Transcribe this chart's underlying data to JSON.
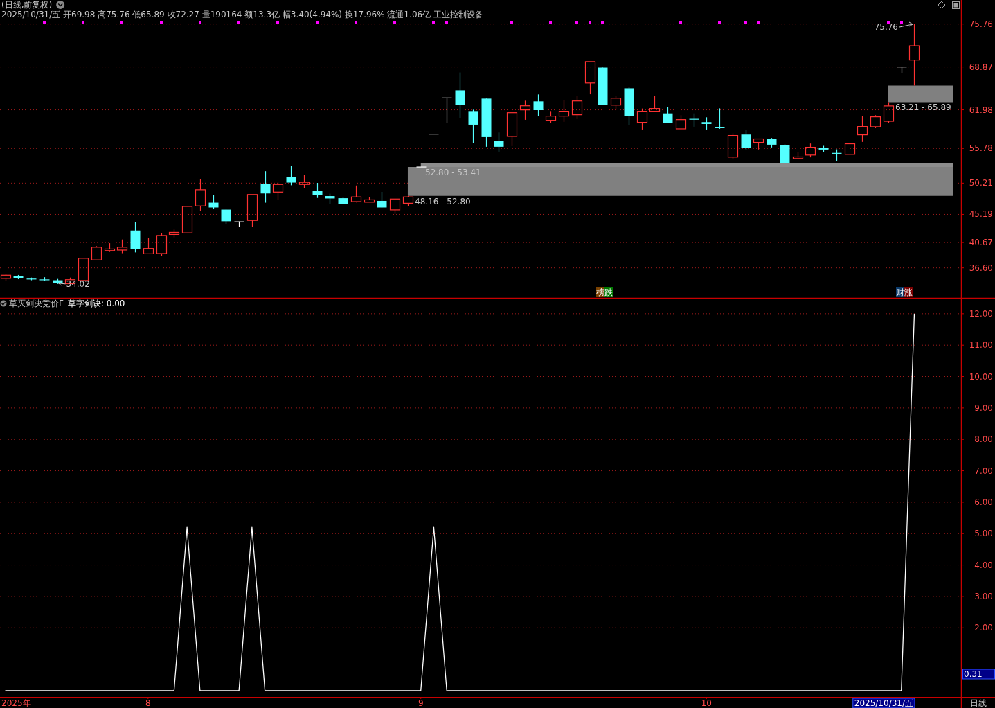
{
  "chart_data": [
    {
      "type": "candlestick",
      "title": "(日线,前复权)",
      "subtitle": "2025/10/31/五 开69.98 高75.76 低65.89 收72.27 量190164 额13.3亿 幅3.40(4.94%) 换17.96% 流通1.06亿 工业控制设备",
      "categories": [
        null,
        null,
        null,
        null,
        null,
        null,
        null,
        null,
        null,
        null,
        null,
        null,
        null,
        null,
        null,
        null,
        null,
        null,
        null,
        null,
        null,
        null,
        null,
        null,
        null,
        null,
        null,
        null,
        null,
        null,
        null,
        null,
        null,
        null,
        null,
        null,
        null,
        null,
        null,
        null,
        null,
        null,
        null,
        null,
        null,
        null,
        null,
        null,
        null,
        null,
        null,
        null,
        null,
        null,
        null,
        null,
        null,
        null,
        null,
        null,
        null,
        null,
        null,
        null,
        null,
        null,
        null,
        null,
        null,
        null,
        null,
        null,
        null,
        null
      ],
      "ohlc": [
        [
          34.91,
          35.68,
          34.49,
          35.42
        ],
        [
          35.34,
          35.46,
          34.78,
          34.91
        ],
        [
          34.83,
          35.04,
          34.61,
          34.78
        ],
        [
          34.7,
          35.1,
          34.49,
          34.66
        ],
        [
          34.61,
          34.82,
          34.02,
          34.14
        ],
        [
          34.06,
          35.04,
          34.06,
          34.7
        ],
        [
          34.57,
          38.14,
          34.57,
          38.14
        ],
        [
          37.88,
          40.09,
          37.88,
          39.92
        ],
        [
          39.37,
          40.56,
          39.16,
          39.63
        ],
        [
          39.46,
          41.16,
          38.95,
          39.92
        ],
        [
          42.6,
          43.92,
          39.08,
          39.63
        ],
        [
          38.86,
          41.37,
          38.86,
          39.71
        ],
        [
          38.9,
          42.13,
          38.56,
          41.8
        ],
        [
          41.97,
          42.77,
          41.5,
          42.3
        ],
        [
          42.22,
          46.47,
          42.22,
          46.47
        ],
        [
          46.55,
          50.81,
          45.75,
          49.15
        ],
        [
          47.07,
          48.25,
          46.05,
          46.3
        ],
        [
          45.96,
          45.96,
          43.54,
          44.09
        ],
        [
          44.0,
          44.05,
          43.24,
          44.0
        ],
        [
          44.22,
          48.38,
          43.2,
          48.38
        ],
        [
          50.04,
          52.12,
          47.07,
          48.55
        ],
        [
          48.77,
          50.3,
          47.53,
          50.0
        ],
        [
          51.15,
          53.02,
          49.87,
          50.3
        ],
        [
          50.0,
          51.49,
          49.44,
          50.34
        ],
        [
          49.02,
          50.25,
          47.83,
          48.3
        ],
        [
          48.13,
          48.51,
          46.81,
          47.75
        ],
        [
          47.79,
          48.04,
          46.81,
          46.85
        ],
        [
          47.24,
          49.83,
          47.11,
          48.0
        ],
        [
          47.15,
          47.96,
          47.15,
          47.53
        ],
        [
          47.36,
          48.81,
          46.3,
          46.3
        ],
        [
          45.92,
          47.66,
          45.28,
          47.66
        ],
        [
          46.98,
          48.16,
          46.47,
          48.0
        ],
        [
          52.8,
          52.8,
          52.8,
          52.8
        ],
        [
          58.08,
          58.08,
          58.08,
          58.08
        ],
        [
          63.89,
          63.89,
          59.9,
          63.89
        ],
        [
          65.11,
          67.99,
          60.6,
          62.82
        ],
        [
          61.78,
          62.0,
          56.61,
          59.6
        ],
        [
          63.78,
          63.78,
          56.05,
          57.6
        ],
        [
          56.98,
          58.34,
          55.27,
          56.05
        ],
        [
          57.71,
          61.52,
          56.16,
          61.52
        ],
        [
          61.97,
          63.45,
          60.38,
          62.63
        ],
        [
          63.34,
          64.45,
          60.93,
          61.93
        ],
        [
          60.3,
          61.78,
          59.93,
          60.97
        ],
        [
          60.97,
          63.56,
          60.05,
          61.75
        ],
        [
          61.19,
          64.22,
          60.49,
          63.41
        ],
        [
          66.29,
          69.73,
          64.48,
          69.73
        ],
        [
          68.77,
          68.77,
          62.82,
          62.82
        ],
        [
          62.74,
          64.22,
          62.0,
          63.85
        ],
        [
          65.44,
          65.74,
          59.49,
          60.93
        ],
        [
          59.97,
          62.19,
          58.82,
          61.75
        ],
        [
          61.75,
          64.19,
          61.75,
          62.19
        ],
        [
          61.41,
          62.45,
          59.82,
          59.82
        ],
        [
          58.93,
          61.12,
          58.93,
          60.41
        ],
        [
          60.52,
          61.41,
          59.27,
          60.41
        ],
        [
          60.01,
          60.78,
          58.82,
          59.71
        ],
        [
          59.23,
          62.22,
          58.93,
          59.04
        ],
        [
          54.39,
          58.2,
          54.05,
          57.86
        ],
        [
          58.01,
          58.79,
          55.57,
          55.83
        ],
        [
          56.75,
          57.31,
          55.61,
          57.31
        ],
        [
          57.34,
          57.46,
          55.94,
          56.38
        ],
        [
          56.35,
          56.46,
          53.41,
          53.46
        ],
        [
          54.16,
          55.24,
          54.05,
          54.42
        ],
        [
          54.72,
          56.57,
          54.35,
          55.97
        ],
        [
          55.9,
          56.2,
          55.24,
          55.6
        ],
        [
          55.01,
          55.64,
          53.79,
          54.98
        ],
        [
          54.83,
          56.68,
          54.83,
          56.53
        ],
        [
          57.97,
          61.0,
          56.83,
          59.3
        ],
        [
          59.27,
          61.12,
          59.04,
          60.86
        ],
        [
          60.15,
          63.21,
          59.82,
          62.61
        ],
        [
          68.87,
          68.87,
          67.81,
          68.87
        ],
        [
          69.98,
          75.76,
          65.89,
          72.27
        ],
        null,
        null,
        null
      ],
      "colors": [
        "#ff3232",
        "#54ffff",
        "#54ffff",
        "#54ffff",
        "#54ffff",
        "#ff3232",
        "#ff3232",
        "#ff3232",
        "#ff3232",
        "#ff3232",
        "#54ffff",
        "#ff3232",
        "#ff3232",
        "#ff3232",
        "#ff3232",
        "#ff3232",
        "#54ffff",
        "#54ffff",
        "#ffffff",
        "#ff3232",
        "#54ffff",
        "#ff3232",
        "#54ffff",
        "#ff3232",
        "#54ffff",
        "#54ffff",
        "#54ffff",
        "#ff3232",
        "#ff3232",
        "#54ffff",
        "#ff3232",
        "#ff3232",
        "#ffffff",
        "#ffffff",
        "#ffffff",
        "#54ffff",
        "#54ffff",
        "#54ffff",
        "#54ffff",
        "#ff3232",
        "#ff3232",
        "#54ffff",
        "#ff3232",
        "#ff3232",
        "#ff3232",
        "#ff3232",
        "#54ffff",
        "#ff3232",
        "#54ffff",
        "#ff3232",
        "#ff3232",
        "#54ffff",
        "#ff3232",
        "#54ffff",
        "#54ffff",
        "#54ffff",
        "#ff3232",
        "#54ffff",
        "#ff3232",
        "#54ffff",
        "#54ffff",
        "#ff3232",
        "#ff3232",
        "#54ffff",
        "#54ffff",
        "#ff3232",
        "#ff3232",
        "#ff3232",
        "#ff3232",
        "#ffffff",
        "#ff3232",
        null,
        null,
        null
      ],
      "series": [
        {
          "type": "line",
          "color": "#808080",
          "values": [
            null,
            null,
            null,
            null,
            null,
            null,
            null,
            null,
            null,
            null,
            null,
            null,
            null,
            null,
            null,
            null,
            null,
            null,
            null,
            null,
            null,
            null,
            null,
            null,
            null,
            null,
            null,
            null,
            null,
            null,
            null,
            null,
            null,
            null,
            null,
            null,
            null,
            null,
            null,
            null,
            null,
            null,
            null,
            null,
            null,
            null,
            null,
            null,
            null,
            null,
            null,
            null,
            null,
            null,
            null,
            null,
            null,
            null,
            null,
            null,
            null,
            null,
            null,
            null,
            null,
            null,
            null,
            null,
            null,
            null,
            null,
            null,
            null,
            null
          ],
          "upper": [
            null,
            null,
            null,
            null,
            null,
            null,
            null,
            null,
            null,
            null,
            null,
            null,
            null,
            null,
            null,
            null,
            null,
            null,
            null,
            null,
            null,
            null,
            null,
            null,
            null,
            null,
            null,
            null,
            null,
            null,
            null,
            52.8,
            52.8,
            52.8,
            52.8,
            52.8,
            52.8,
            52.8,
            52.8,
            52.8,
            52.8,
            52.8,
            52.8,
            52.8,
            52.8,
            52.8,
            52.8,
            52.8,
            52.8,
            52.8,
            52.8,
            52.8,
            52.8,
            52.8,
            52.8,
            52.8,
            52.8,
            52.8,
            52.8,
            52.8,
            52.8,
            52.8,
            52.8,
            52.8,
            52.8,
            52.8,
            52.8,
            52.8,
            52.8,
            52.8,
            52.8,
            52.8,
            52.8,
            52.8
          ],
          "lower": [
            null,
            null,
            null,
            null,
            null,
            null,
            null,
            null,
            null,
            null,
            null,
            null,
            null,
            null,
            null,
            null,
            null,
            null,
            null,
            null,
            null,
            null,
            null,
            null,
            null,
            null,
            null,
            null,
            null,
            null,
            null,
            48.16,
            48.16,
            48.16,
            48.16,
            48.16,
            48.16,
            48.16,
            48.16,
            48.16,
            48.16,
            48.16,
            48.16,
            48.16,
            48.16,
            48.16,
            48.16,
            48.16,
            48.16,
            48.16,
            48.16,
            48.16,
            48.16,
            48.16,
            48.16,
            48.16,
            48.16,
            48.16,
            48.16,
            48.16,
            48.16,
            48.16,
            48.16,
            48.16,
            48.16,
            48.16,
            48.16,
            48.16,
            48.16,
            48.16,
            48.16,
            48.16,
            48.16,
            48.16
          ]
        },
        {
          "type": "line",
          "color": "#8c8c8c",
          "values": [
            null,
            null,
            null,
            null,
            null,
            null,
            null,
            null,
            null,
            null,
            null,
            null,
            null,
            null,
            null,
            null,
            null,
            null,
            null,
            null,
            null,
            null,
            null,
            null,
            null,
            null,
            null,
            null,
            null,
            null,
            null,
            null,
            null,
            null,
            null,
            null,
            null,
            null,
            null,
            null,
            null,
            null,
            null,
            null,
            null,
            null,
            null,
            null,
            null,
            null,
            null,
            null,
            null,
            null,
            null,
            null,
            null,
            null,
            null,
            null,
            null,
            null,
            null,
            null,
            null,
            null,
            null,
            null,
            null,
            null,
            null,
            null,
            null,
            null
          ],
          "upper": [
            null,
            null,
            null,
            null,
            null,
            null,
            null,
            null,
            null,
            null,
            null,
            null,
            null,
            null,
            null,
            null,
            null,
            null,
            null,
            null,
            null,
            null,
            null,
            null,
            null,
            null,
            null,
            null,
            null,
            null,
            null,
            null,
            53.41,
            53.41,
            53.41,
            53.41,
            53.41,
            53.41,
            53.41,
            53.41,
            53.41,
            53.41,
            53.41,
            53.41,
            53.41,
            53.41,
            53.41,
            53.41,
            53.41,
            53.41,
            53.41,
            53.41,
            53.41,
            53.41,
            53.41,
            53.41,
            53.41,
            53.41,
            53.41,
            53.41,
            53.41,
            53.41,
            53.41,
            53.41,
            53.41,
            53.41,
            53.41,
            53.41,
            53.41,
            53.41,
            53.41,
            53.41,
            53.41,
            53.41
          ],
          "lower": [
            null,
            null,
            null,
            null,
            null,
            null,
            null,
            null,
            null,
            null,
            null,
            null,
            null,
            null,
            null,
            null,
            null,
            null,
            null,
            null,
            null,
            null,
            null,
            null,
            null,
            null,
            null,
            null,
            null,
            null,
            null,
            null,
            52.8,
            52.8,
            52.8,
            52.8,
            52.8,
            52.8,
            52.8,
            52.8,
            52.8,
            52.8,
            52.8,
            52.8,
            52.8,
            52.8,
            52.8,
            52.8,
            52.8,
            52.8,
            52.8,
            52.8,
            52.8,
            52.8,
            52.8,
            52.8,
            52.8,
            52.8,
            52.8,
            52.8,
            52.8,
            52.8,
            52.8,
            52.8,
            52.8,
            52.8,
            52.8,
            52.8,
            52.8,
            52.8,
            52.8,
            52.8,
            52.8,
            52.8
          ]
        },
        {
          "type": "line",
          "color": "#808080",
          "values": [
            null,
            null,
            null,
            null,
            null,
            null,
            null,
            null,
            null,
            null,
            null,
            null,
            null,
            null,
            null,
            null,
            null,
            null,
            null,
            null,
            null,
            null,
            null,
            null,
            null,
            null,
            null,
            null,
            null,
            null,
            null,
            null,
            null,
            null,
            null,
            null,
            null,
            null,
            null,
            null,
            null,
            null,
            null,
            null,
            null,
            null,
            null,
            null,
            null,
            null,
            null,
            null,
            null,
            null,
            null,
            null,
            null,
            null,
            null,
            null,
            null,
            null,
            null,
            null,
            null,
            null,
            null,
            null,
            null,
            null,
            null,
            null,
            null,
            null
          ],
          "upper": [
            null,
            null,
            null,
            null,
            null,
            null,
            null,
            null,
            null,
            null,
            null,
            null,
            null,
            null,
            null,
            null,
            null,
            null,
            null,
            null,
            null,
            null,
            null,
            null,
            null,
            null,
            null,
            null,
            null,
            null,
            null,
            null,
            null,
            null,
            null,
            null,
            null,
            null,
            null,
            null,
            null,
            null,
            null,
            null,
            null,
            null,
            null,
            null,
            null,
            null,
            null,
            null,
            null,
            null,
            null,
            null,
            null,
            null,
            null,
            null,
            null,
            null,
            null,
            null,
            null,
            null,
            null,
            null,
            65.89,
            65.89,
            65.89,
            65.89,
            65.89,
            65.89
          ],
          "lower": [
            null,
            null,
            null,
            null,
            null,
            null,
            null,
            null,
            null,
            null,
            null,
            null,
            null,
            null,
            null,
            null,
            null,
            null,
            null,
            null,
            null,
            null,
            null,
            null,
            null,
            null,
            null,
            null,
            null,
            null,
            null,
            null,
            null,
            null,
            null,
            null,
            null,
            null,
            null,
            null,
            null,
            null,
            null,
            null,
            null,
            null,
            null,
            null,
            null,
            null,
            null,
            null,
            null,
            null,
            null,
            null,
            null,
            null,
            null,
            null,
            null,
            null,
            null,
            null,
            null,
            null,
            null,
            null,
            63.21,
            63.21,
            63.21,
            63.21,
            63.21,
            63.21
          ]
        },
        {
          "type": "scatter",
          "color": "#ff00ff",
          "marker": "square",
          "values": [
            null,
            null,
            null,
            76,
            null,
            null,
            76,
            null,
            null,
            76,
            null,
            null,
            76,
            null,
            null,
            76,
            null,
            null,
            76,
            null,
            null,
            76,
            null,
            null,
            76,
            null,
            null,
            76,
            null,
            null,
            76,
            null,
            null,
            76,
            76,
            null,
            null,
            null,
            null,
            76,
            null,
            null,
            76,
            null,
            76,
            76,
            76,
            null,
            null,
            null,
            null,
            null,
            76,
            null,
            null,
            76,
            null,
            76,
            76,
            null,
            null,
            null,
            null,
            null,
            null,
            null,
            null,
            null,
            76,
            76,
            null,
            null,
            null,
            null
          ]
        }
      ],
      "ylim": [
        31.78,
        79.62
      ],
      "yticks": [
        {
          "value": 36.6,
          "label": "36.60"
        },
        40.67,
        45.19,
        50.21,
        55.78,
        61.98,
        68.87,
        75.76
      ],
      "grid": "y",
      "tick_labels": "y",
      "annotations": [
        {
          "text": "34.02",
          "y": 34.02
        },
        "75.76",
        "榜跌",
        "财涨",
        "48.16 - 52.80",
        "52.80 - 53.41",
        "63.21 - 65.89"
      ]
    },
    {
      "type": "line",
      "title": "草灭剑决竞价F",
      "categories": [
        null,
        null,
        null,
        null,
        null,
        null,
        null,
        null,
        null,
        null,
        null,
        "8",
        null,
        null,
        null,
        null,
        null,
        null,
        null,
        null,
        null,
        null,
        null,
        null,
        null,
        null,
        null,
        null,
        null,
        null,
        null,
        null,
        "9",
        null,
        null,
        null,
        null,
        null,
        null,
        null,
        null,
        null,
        null,
        null,
        null,
        null,
        null,
        null,
        null,
        null,
        null,
        null,
        null,
        null,
        "10",
        null,
        null,
        null,
        null,
        null,
        null,
        null,
        null,
        null,
        null,
        null,
        null,
        null,
        null,
        null,
        null,
        null,
        null,
        null
      ],
      "series": [
        {
          "name": "草字剑诀: 0.00",
          "color": "#ffffff",
          "values": [
            0,
            0,
            0,
            0,
            0,
            0,
            0,
            0,
            0,
            0,
            0,
            0,
            0,
            0,
            5.2,
            0,
            0,
            0,
            0,
            5.2,
            0,
            0,
            0,
            0,
            0,
            0,
            0,
            0,
            0,
            0,
            0,
            0,
            0,
            5.2,
            0,
            0,
            0,
            0,
            0,
            0,
            0,
            0,
            0,
            0,
            0,
            0,
            0,
            0,
            0,
            0,
            0,
            0,
            0,
            0,
            0,
            0,
            0,
            0,
            0,
            0,
            0,
            0,
            0,
            0,
            0,
            0,
            0,
            0,
            0,
            0,
            12,
            null,
            null,
            null
          ]
        }
      ],
      "ylim": [
        -0.2,
        12.46
      ],
      "yticks": [
        {
          "value": 2,
          "label": "2.00"
        },
        {
          "value": 3,
          "label": "3.00"
        },
        {
          "value": 4,
          "label": "4.00"
        },
        {
          "value": 5,
          "label": "5.00"
        },
        {
          "value": 6,
          "label": "6.00"
        },
        {
          "value": 7,
          "label": "7.00"
        },
        {
          "value": 8,
          "label": "8.00"
        },
        {
          "value": 9,
          "label": "9.00"
        },
        {
          "value": 10,
          "label": "10.00"
        },
        {
          "value": 11,
          "label": "11.00"
        },
        {
          "value": 12,
          "label": "12.00"
        }
      ],
      "grid": "y",
      "legend": "top left",
      "annotations": [
        "2025年",
        "2025/10/31/五",
        "0.31",
        "日线"
      ]
    }
  ]
}
